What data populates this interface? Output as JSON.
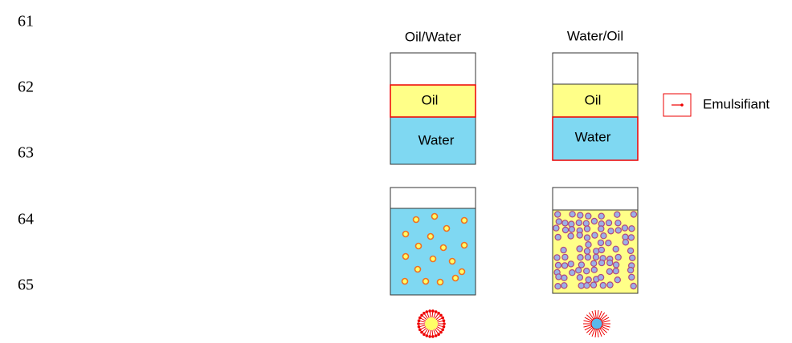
{
  "line_numbers": [
    "61",
    "62",
    "63",
    "64",
    "65"
  ],
  "diagram": {
    "columns": [
      {
        "title": "Oil/Water",
        "oil_label": "Oil",
        "water_label": "Water"
      },
      {
        "title": "Water/Oil",
        "oil_label": "Oil",
        "water_label": "Water"
      }
    ],
    "legend": {
      "label": "Emulsifiant"
    }
  }
}
